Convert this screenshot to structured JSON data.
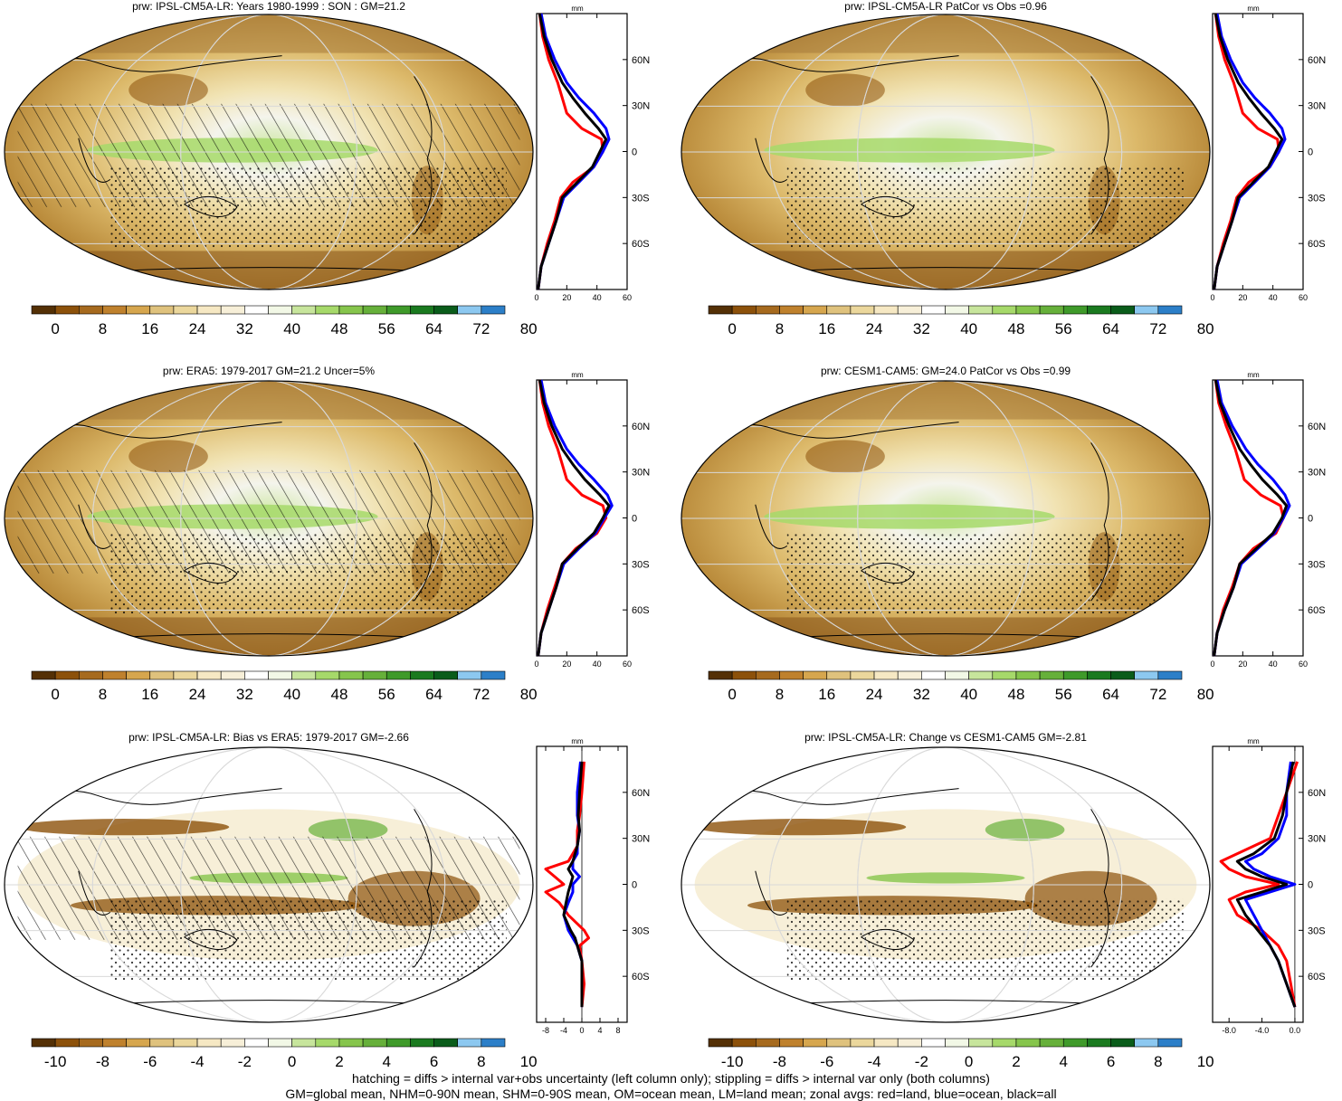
{
  "footnote": {
    "line1": "hatching = diffs > internal var+obs uncertainty (left column only); stippling = diffs > internal var only (both columns)",
    "line2": "GM=global mean, NHM=0-90N mean, SHM=0-90S mean, OM=ocean mean, LM=land mean; zonal avgs: red=land, blue=ocean, black=all"
  },
  "colors": {
    "land_line": "#ff0000",
    "ocean_line": "#0000ff",
    "all_line": "#000000",
    "palette": [
      "#543005",
      "#8c510a",
      "#a66a1e",
      "#bf812d",
      "#d6a64e",
      "#dfc27d",
      "#ebd79c",
      "#f6e8c3",
      "#f7efd8",
      "#ffffff",
      "#f2f8e6",
      "#c7e59c",
      "#a6d96a",
      "#86c54c",
      "#66b03a",
      "#3f9a2a",
      "#1a7a1f",
      "#0a5c1a",
      "#8cc8f0",
      "#2c7fc8"
    ]
  },
  "common": {
    "zonal_unit": "mm",
    "lat_labels": [
      "60N",
      "30N",
      "0",
      "30S",
      "60S"
    ]
  },
  "chart_data": [
    {
      "type": "heatmap",
      "id": "p1",
      "title": "prw: IPSL-CM5A-LR: Years 1980-1999 : SON : GM=21.2",
      "colorbar_ticks": [
        "0",
        "8",
        "16",
        "24",
        "32",
        "40",
        "48",
        "56",
        "64",
        "72",
        "80"
      ],
      "zonal": {
        "xticks": [
          "0",
          "20",
          "40",
          "60"
        ],
        "xlim": [
          0,
          60
        ],
        "ylim": [
          -90,
          90
        ],
        "lat": [
          -90,
          -75,
          -60,
          -45,
          -30,
          -20,
          -10,
          0,
          8,
          15,
          25,
          35,
          45,
          60,
          75,
          90
        ],
        "series": [
          {
            "name": "land",
            "values": [
              1,
              3,
              7,
              12,
              16,
              24,
              38,
              44,
              43,
              30,
              20,
              17,
              14,
              8,
              4,
              2
            ]
          },
          {
            "name": "ocean",
            "values": [
              1,
              3,
              8,
              13,
              18,
              28,
              38,
              44,
              48,
              46,
              38,
              28,
              20,
              12,
              6,
              3
            ]
          },
          {
            "name": "all",
            "values": [
              1,
              3,
              8,
              13,
              17,
              27,
              37,
              42,
              46,
              41,
              32,
              24,
              17,
              10,
              5,
              2
            ]
          }
        ]
      }
    },
    {
      "type": "heatmap",
      "id": "p2",
      "title": "prw: IPSL-CM5A-LR PatCor vs Obs =0.96",
      "colorbar_ticks": [
        "0",
        "8",
        "16",
        "24",
        "32",
        "40",
        "48",
        "56",
        "64",
        "72",
        "80"
      ],
      "zonal": {
        "xticks": [
          "0",
          "20",
          "40",
          "60"
        ],
        "xlim": [
          0,
          60
        ],
        "ylim": [
          -90,
          90
        ],
        "lat": [
          -90,
          -75,
          -60,
          -45,
          -30,
          -20,
          -10,
          0,
          8,
          15,
          25,
          35,
          45,
          60,
          75,
          90
        ],
        "series": [
          {
            "name": "land",
            "values": [
              1,
              3,
              7,
              12,
              16,
              24,
              38,
              44,
              43,
              30,
              20,
              17,
              14,
              8,
              4,
              2
            ]
          },
          {
            "name": "ocean",
            "values": [
              1,
              3,
              8,
              13,
              18,
              28,
              38,
              44,
              48,
              46,
              38,
              28,
              20,
              12,
              6,
              3
            ]
          },
          {
            "name": "all",
            "values": [
              1,
              3,
              8,
              13,
              17,
              27,
              37,
              42,
              46,
              41,
              32,
              24,
              17,
              10,
              5,
              2
            ]
          }
        ]
      }
    },
    {
      "type": "heatmap",
      "id": "p3",
      "title": "prw: ERA5: 1979-2017 GM=21.2 Uncer=5%",
      "colorbar_ticks": [
        "0",
        "8",
        "16",
        "24",
        "32",
        "40",
        "48",
        "56",
        "64",
        "72",
        "80"
      ],
      "zonal": {
        "xticks": [
          "0",
          "20",
          "40",
          "60"
        ],
        "xlim": [
          0,
          60
        ],
        "ylim": [
          -90,
          90
        ],
        "lat": [
          -90,
          -75,
          -60,
          -45,
          -30,
          -20,
          -10,
          0,
          8,
          15,
          25,
          35,
          45,
          60,
          75,
          90
        ],
        "series": [
          {
            "name": "land",
            "values": [
              1,
              3,
              7,
              12,
              17,
              26,
              40,
              46,
              44,
              30,
              20,
              17,
              14,
              8,
              4,
              2
            ]
          },
          {
            "name": "ocean",
            "values": [
              1,
              3,
              8,
              13,
              18,
              28,
              39,
              45,
              50,
              47,
              38,
              28,
              20,
              12,
              6,
              3
            ]
          },
          {
            "name": "all",
            "values": [
              1,
              3,
              8,
              13,
              17,
              27,
              38,
              44,
              48,
              42,
              32,
              24,
              17,
              10,
              5,
              2
            ]
          }
        ]
      }
    },
    {
      "type": "heatmap",
      "id": "p4",
      "title": "prw: CESM1-CAM5: GM=24.0 PatCor vs Obs =0.99",
      "colorbar_ticks": [
        "0",
        "8",
        "16",
        "24",
        "32",
        "40",
        "48",
        "56",
        "64",
        "72",
        "80"
      ],
      "zonal": {
        "xticks": [
          "0",
          "20",
          "40",
          "60"
        ],
        "xlim": [
          0,
          60
        ],
        "ylim": [
          -90,
          90
        ],
        "lat": [
          -90,
          -75,
          -60,
          -45,
          -30,
          -20,
          -10,
          0,
          8,
          15,
          25,
          35,
          45,
          60,
          75,
          90
        ],
        "series": [
          {
            "name": "land",
            "values": [
              1,
              3,
              7,
              13,
              18,
              27,
              42,
              47,
              45,
              32,
              21,
              18,
              15,
              9,
              4,
              2
            ]
          },
          {
            "name": "ocean",
            "values": [
              1,
              3,
              8,
              14,
              19,
              30,
              41,
              47,
              51,
              48,
              40,
              30,
              22,
              13,
              6,
              3
            ]
          },
          {
            "name": "all",
            "values": [
              1,
              3,
              8,
              14,
              18,
              29,
              40,
              46,
              49,
              43,
              33,
              25,
              18,
              11,
              5,
              2
            ]
          }
        ]
      }
    },
    {
      "type": "heatmap",
      "id": "p5",
      "title": "prw: IPSL-CM5A-LR: Bias vs ERA5: 1979-2017  GM=-2.66",
      "colorbar_ticks": [
        "-10",
        "-8",
        "-6",
        "-4",
        "-2",
        "0",
        "2",
        "4",
        "6",
        "8",
        "10"
      ],
      "zonal": {
        "xticks": [
          "-8",
          "-4",
          "0",
          "4",
          "8"
        ],
        "xlim": [
          -10,
          10
        ],
        "ylim": [
          -90,
          90
        ],
        "lat": [
          -80,
          -65,
          -50,
          -40,
          -35,
          -30,
          -20,
          -12,
          -5,
          0,
          5,
          10,
          15,
          20,
          25,
          35,
          45,
          60,
          80
        ],
        "series": [
          {
            "name": "land",
            "values": [
              0,
              0.5,
              0,
              -0.5,
              1.5,
              0.5,
              -3,
              -5,
              -8,
              -4,
              -6,
              -8,
              -3,
              -2,
              -1,
              -1,
              -0.5,
              0,
              0.5
            ]
          },
          {
            "name": "ocean",
            "values": [
              0,
              0,
              0,
              -1,
              -2,
              -3,
              -4,
              -3,
              -2,
              -2,
              -0.5,
              -2,
              -2,
              -1,
              -1,
              -0.5,
              -1,
              -1,
              -0.3
            ]
          },
          {
            "name": "all",
            "values": [
              0,
              0,
              0,
              -1,
              -1.5,
              -2.5,
              -4,
              -3.5,
              -3,
              -2.5,
              -2,
              -3,
              -2,
              -1.5,
              -1,
              -0.5,
              -0.8,
              -0.5,
              0
            ]
          }
        ]
      }
    },
    {
      "type": "heatmap",
      "id": "p6",
      "title": "prw: IPSL-CM5A-LR: Change vs CESM1-CAM5 GM=-2.81",
      "colorbar_ticks": [
        "-10",
        "-8",
        "-6",
        "-4",
        "-2",
        "0",
        "2",
        "4",
        "6",
        "8",
        "10"
      ],
      "zonal": {
        "xticks": [
          "-8.0",
          "-4.0",
          "0.0"
        ],
        "xlim": [
          -10,
          1
        ],
        "ylim": [
          -90,
          90
        ],
        "lat": [
          -80,
          -65,
          -50,
          -40,
          -30,
          -20,
          -10,
          -5,
          0,
          5,
          10,
          15,
          20,
          30,
          45,
          60,
          80
        ],
        "series": [
          {
            "name": "land",
            "values": [
              0,
              -0.5,
              -1,
              -2,
              -4,
              -7,
              -8,
              -6,
              -2,
              -6,
              -8,
              -9,
              -7,
              -3,
              -2,
              -1,
              0.3
            ]
          },
          {
            "name": "ocean",
            "values": [
              0,
              -1,
              -2,
              -3,
              -4,
              -5,
              -6,
              -3,
              0,
              -3,
              -5,
              -6,
              -4,
              -2,
              -1,
              -1,
              -0.5
            ]
          },
          {
            "name": "all",
            "values": [
              0,
              -1,
              -2,
              -3,
              -4.5,
              -6,
              -7,
              -4,
              -1,
              -4,
              -6,
              -7,
              -5,
              -2.5,
              -1.5,
              -1,
              -0.2
            ]
          }
        ]
      }
    }
  ]
}
